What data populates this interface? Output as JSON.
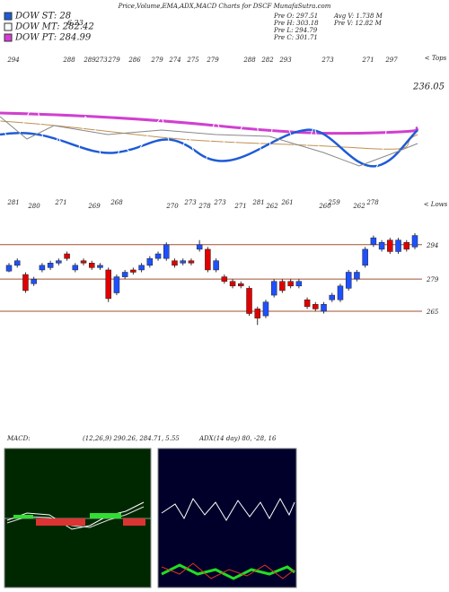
{
  "header": {
    "title": "Price,Volume,EMA,ADX,MACD Charts for DSCF MunafaSutra.com",
    "legend": [
      {
        "label": "DOW ST: 28",
        "color": "#1e5bd6"
      },
      {
        "label": "DOW MT: 282.42",
        "color": "#ffffff"
      },
      {
        "label": "DOW PT: 284.99",
        "color": "#d83cd8"
      }
    ],
    "extra": "6.23",
    "info": [
      "Pre O: 297.51",
      "Pre H: 303.18",
      "Pre L: 294.79",
      "Pre C: 301.71",
      "Avg V: 1.738 M",
      "Pre V: 12.82 M"
    ]
  },
  "top_panel": {
    "tops": [
      294,
      288,
      289,
      273,
      279,
      286,
      279,
      274,
      275,
      279,
      288,
      282,
      293,
      273,
      271,
      297
    ],
    "tops_label": "< Tops",
    "lows": [
      281,
      280,
      271,
      269,
      268,
      270,
      273,
      278,
      273,
      271,
      281,
      262,
      261,
      260,
      259,
      262,
      278
    ],
    "lows_label": "< Lows",
    "value_label": "236.05"
  },
  "chart_data": {
    "type": "candlestick",
    "open": [
      282.5,
      285,
      281,
      277,
      283,
      284,
      286,
      290,
      283,
      287,
      286,
      284,
      283,
      273,
      280,
      283,
      283,
      285,
      288,
      288,
      287,
      286,
      287,
      292,
      292,
      283,
      280,
      278,
      277,
      275,
      266,
      263,
      272,
      278,
      278,
      276,
      270,
      268,
      265,
      270,
      270,
      275,
      279,
      285,
      294,
      292,
      296,
      291,
      295,
      293
    ],
    "close": [
      285,
      287,
      274,
      279,
      285,
      286,
      287,
      288,
      285,
      286,
      284,
      285,
      270.5,
      280,
      282,
      282,
      285,
      288,
      290,
      294,
      285,
      287,
      286,
      294,
      283,
      287,
      278,
      276,
      276,
      264,
      262,
      269,
      278,
      274,
      276,
      278,
      267,
      266,
      268,
      272,
      276,
      282,
      282,
      292,
      297,
      295,
      291,
      296,
      292,
      298
    ],
    "high": [
      286,
      288,
      282,
      280,
      286,
      287,
      288,
      291,
      286,
      288,
      287,
      286,
      284,
      281,
      283,
      284,
      286,
      289,
      291,
      295,
      288,
      288,
      288,
      296,
      293,
      288,
      281,
      279,
      278,
      276,
      267,
      270,
      279,
      279,
      279,
      279,
      271,
      269,
      269,
      273,
      277,
      283,
      283,
      293,
      298,
      296,
      297,
      297,
      296,
      299
    ],
    "low": [
      282,
      284,
      273,
      276,
      282,
      283,
      285,
      287,
      282,
      285,
      283,
      283,
      269,
      272,
      279,
      281,
      282,
      284,
      287,
      287,
      284,
      285,
      285,
      291,
      282,
      282,
      277,
      275,
      275,
      263,
      259,
      262,
      271,
      273,
      275,
      275,
      266,
      265,
      264,
      269,
      269,
      274,
      278,
      284,
      293,
      291,
      290,
      290,
      291,
      292
    ],
    "ylim": [
      256,
      299
    ],
    "yticks": [
      294,
      279,
      265
    ],
    "up_color": "#1e50ff",
    "down_color": "#e00000"
  },
  "indicators": {
    "macd_label": "MACD:",
    "macd_text": "(12,26,9) 290.26, 284.71, 5.55",
    "adx_label": "ADX",
    "adx_text": "(14 day) 80, -28, 16"
  }
}
